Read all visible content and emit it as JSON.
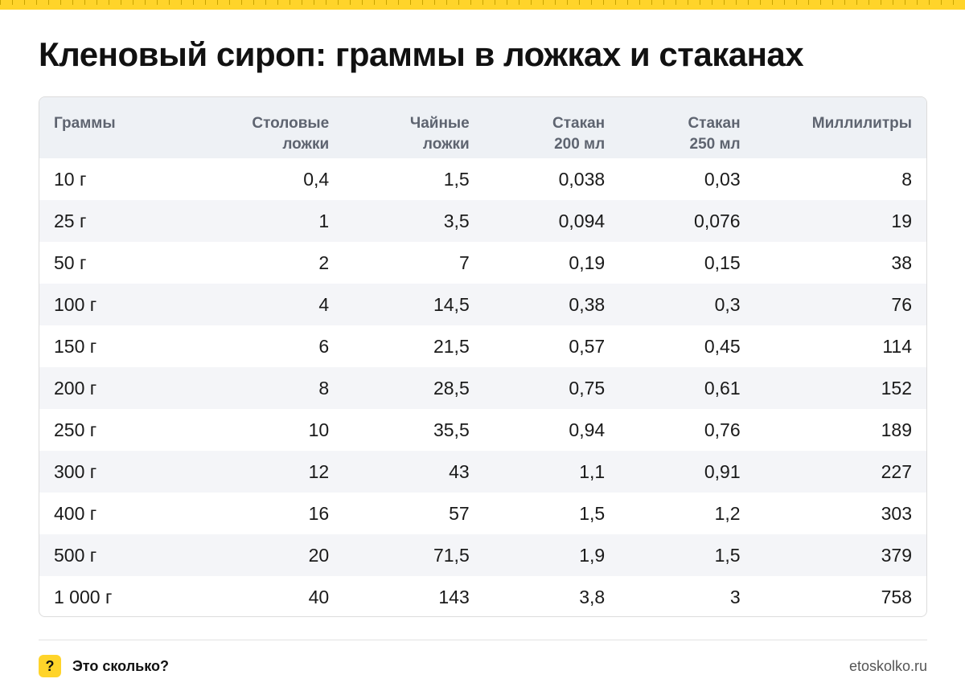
{
  "title": "Кленовый сироп: граммы в ложках и стаканах",
  "table": {
    "headers": [
      [
        "Граммы",
        ""
      ],
      [
        "Столовые",
        "ложки"
      ],
      [
        "Чайные",
        "ложки"
      ],
      [
        "Стакан",
        "200 мл"
      ],
      [
        "Стакан",
        "250 мл"
      ],
      [
        "Миллилитры",
        ""
      ]
    ],
    "rows": [
      [
        "10 г",
        "0,4",
        "1,5",
        "0,038",
        "0,03",
        "8"
      ],
      [
        "25 г",
        "1",
        "3,5",
        "0,094",
        "0,076",
        "19"
      ],
      [
        "50 г",
        "2",
        "7",
        "0,19",
        "0,15",
        "38"
      ],
      [
        "100 г",
        "4",
        "14,5",
        "0,38",
        "0,3",
        "76"
      ],
      [
        "150 г",
        "6",
        "21,5",
        "0,57",
        "0,45",
        "114"
      ],
      [
        "200 г",
        "8",
        "28,5",
        "0,75",
        "0,61",
        "152"
      ],
      [
        "250 г",
        "10",
        "35,5",
        "0,94",
        "0,76",
        "189"
      ],
      [
        "300 г",
        "12",
        "43",
        "1,1",
        "0,91",
        "227"
      ],
      [
        "400 г",
        "16",
        "57",
        "1,5",
        "1,2",
        "303"
      ],
      [
        "500 г",
        "20",
        "71,5",
        "1,9",
        "1,5",
        "379"
      ],
      [
        "1 000 г",
        "40",
        "143",
        "3,8",
        "3",
        "758"
      ]
    ]
  },
  "footer": {
    "icon_glyph": "?",
    "brand": "Это сколько?",
    "site": "etoskolko.ru"
  },
  "colors": {
    "accent": "#ffd42a",
    "header_bg": "#eef1f5",
    "stripe_bg": "#f4f5f8"
  }
}
